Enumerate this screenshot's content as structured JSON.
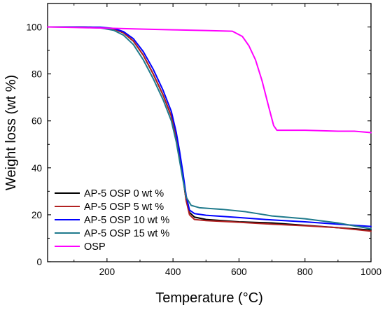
{
  "chart_data": {
    "type": "line",
    "title": "",
    "xlabel": "Temperature (°C)",
    "ylabel": "Weight loss (wt %)",
    "xlim": [
      20,
      1000
    ],
    "ylim": [
      0,
      110
    ],
    "x_ticks": [
      200,
      400,
      600,
      800,
      1000
    ],
    "y_ticks": [
      0,
      20,
      40,
      60,
      80,
      100
    ],
    "grid": false,
    "legend_position": "bottom-left",
    "series": [
      {
        "name": "AP-5 OSP 0 wt %",
        "color": "#000000",
        "points": [
          [
            20,
            100
          ],
          [
            100,
            100
          ],
          [
            180,
            99.8
          ],
          [
            220,
            99.2
          ],
          [
            250,
            97.5
          ],
          [
            280,
            94
          ],
          [
            310,
            88
          ],
          [
            340,
            80
          ],
          [
            370,
            71
          ],
          [
            395,
            62
          ],
          [
            410,
            53
          ],
          [
            420,
            45
          ],
          [
            430,
            36
          ],
          [
            440,
            26
          ],
          [
            450,
            21
          ],
          [
            465,
            19
          ],
          [
            500,
            18
          ],
          [
            600,
            17
          ],
          [
            700,
            16.5
          ],
          [
            800,
            15.5
          ],
          [
            900,
            14.5
          ],
          [
            1000,
            13.5
          ]
        ]
      },
      {
        "name": "AP-5 OSP 5 wt %",
        "color": "#b22222",
        "points": [
          [
            20,
            100
          ],
          [
            100,
            100
          ],
          [
            180,
            99.8
          ],
          [
            220,
            99.2
          ],
          [
            250,
            97.5
          ],
          [
            280,
            94
          ],
          [
            310,
            88
          ],
          [
            340,
            80
          ],
          [
            370,
            71
          ],
          [
            395,
            62
          ],
          [
            410,
            53
          ],
          [
            420,
            45
          ],
          [
            430,
            36
          ],
          [
            440,
            26
          ],
          [
            450,
            20
          ],
          [
            465,
            18
          ],
          [
            500,
            17.5
          ],
          [
            600,
            16.8
          ],
          [
            700,
            16
          ],
          [
            800,
            15.3
          ],
          [
            900,
            14.5
          ],
          [
            1000,
            13
          ]
        ]
      },
      {
        "name": "AP-5 OSP 10 wt %",
        "color": "#0000ff",
        "points": [
          [
            20,
            100
          ],
          [
            100,
            100
          ],
          [
            180,
            99.9
          ],
          [
            220,
            99.4
          ],
          [
            250,
            98
          ],
          [
            280,
            95
          ],
          [
            310,
            89.5
          ],
          [
            340,
            82
          ],
          [
            370,
            73
          ],
          [
            395,
            64
          ],
          [
            410,
            55
          ],
          [
            420,
            47
          ],
          [
            430,
            38
          ],
          [
            440,
            28
          ],
          [
            450,
            22
          ],
          [
            465,
            20.5
          ],
          [
            500,
            19.8
          ],
          [
            600,
            18.8
          ],
          [
            700,
            17.8
          ],
          [
            800,
            17
          ],
          [
            900,
            16
          ],
          [
            1000,
            15
          ]
        ]
      },
      {
        "name": "AP-5 OSP 15 wt %",
        "color": "#1f7a8c",
        "points": [
          [
            20,
            100
          ],
          [
            100,
            99.9
          ],
          [
            180,
            99.6
          ],
          [
            220,
            98.6
          ],
          [
            250,
            96.5
          ],
          [
            280,
            92.5
          ],
          [
            310,
            86
          ],
          [
            340,
            78
          ],
          [
            370,
            69
          ],
          [
            395,
            60
          ],
          [
            410,
            51
          ],
          [
            420,
            43
          ],
          [
            430,
            35
          ],
          [
            440,
            27.5
          ],
          [
            455,
            24
          ],
          [
            480,
            23
          ],
          [
            550,
            22.3
          ],
          [
            620,
            21.3
          ],
          [
            700,
            19.5
          ],
          [
            800,
            18.3
          ],
          [
            900,
            16.5
          ],
          [
            1000,
            14
          ]
        ]
      },
      {
        "name": "OSP",
        "color": "#ff00ff",
        "points": [
          [
            20,
            100
          ],
          [
            100,
            99.8
          ],
          [
            200,
            99.5
          ],
          [
            300,
            99.1
          ],
          [
            400,
            98.8
          ],
          [
            500,
            98.5
          ],
          [
            580,
            98.2
          ],
          [
            610,
            96
          ],
          [
            630,
            92
          ],
          [
            650,
            86
          ],
          [
            670,
            77
          ],
          [
            690,
            66
          ],
          [
            705,
            58
          ],
          [
            715,
            56
          ],
          [
            800,
            56
          ],
          [
            900,
            55.6
          ],
          [
            950,
            55.6
          ],
          [
            1000,
            55
          ]
        ]
      }
    ]
  }
}
